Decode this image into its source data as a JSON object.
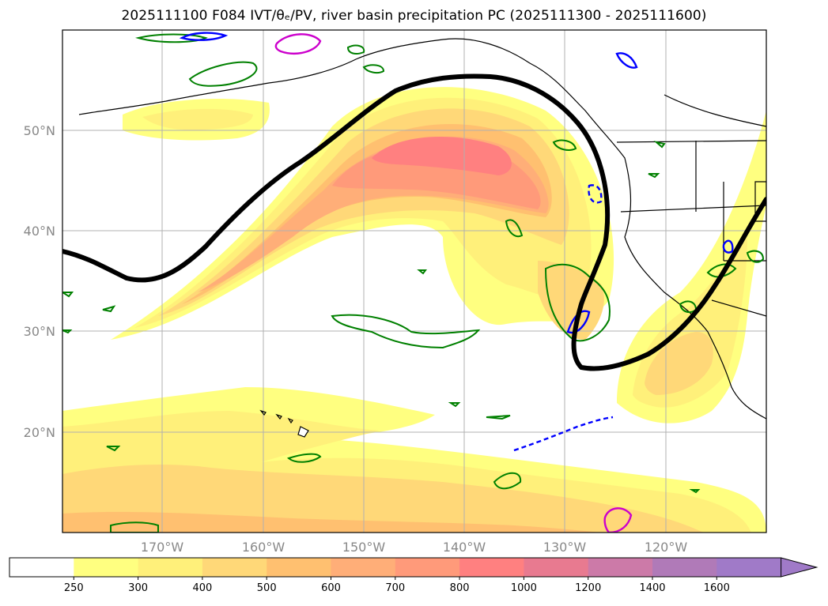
{
  "title": "2025111100 F084 IVT/θₑ/PV, river basin precipitation PC (2025111300 - 2025111600)",
  "map": {
    "lon_labels": [
      "170°W",
      "160°W",
      "150°W",
      "140°W",
      "130°W",
      "120°W"
    ],
    "lat_labels": [
      "50°N",
      "40°N",
      "30°N",
      "20°N"
    ],
    "grid": true
  },
  "colorbar": {
    "levels": [
      "250",
      "300",
      "400",
      "500",
      "600",
      "700",
      "800",
      "1000",
      "1200",
      "1400",
      "1600"
    ],
    "colors": [
      "#ffffff",
      "#ffff80",
      "#fff07a",
      "#ffd878",
      "#ffc070",
      "#ffae78",
      "#ff9a7a",
      "#ff8080",
      "#e87a90",
      "#cc7aa8",
      "#b07ab8",
      "#a07ac8"
    ],
    "extend": "max"
  },
  "colors": {
    "pv_contour": "#008000",
    "theta_negative": "#0000ff",
    "theta_positive": "#cc00cc",
    "jet_axis": "#000000",
    "coastline": "#000000",
    "grid": "#b0b0b0"
  }
}
